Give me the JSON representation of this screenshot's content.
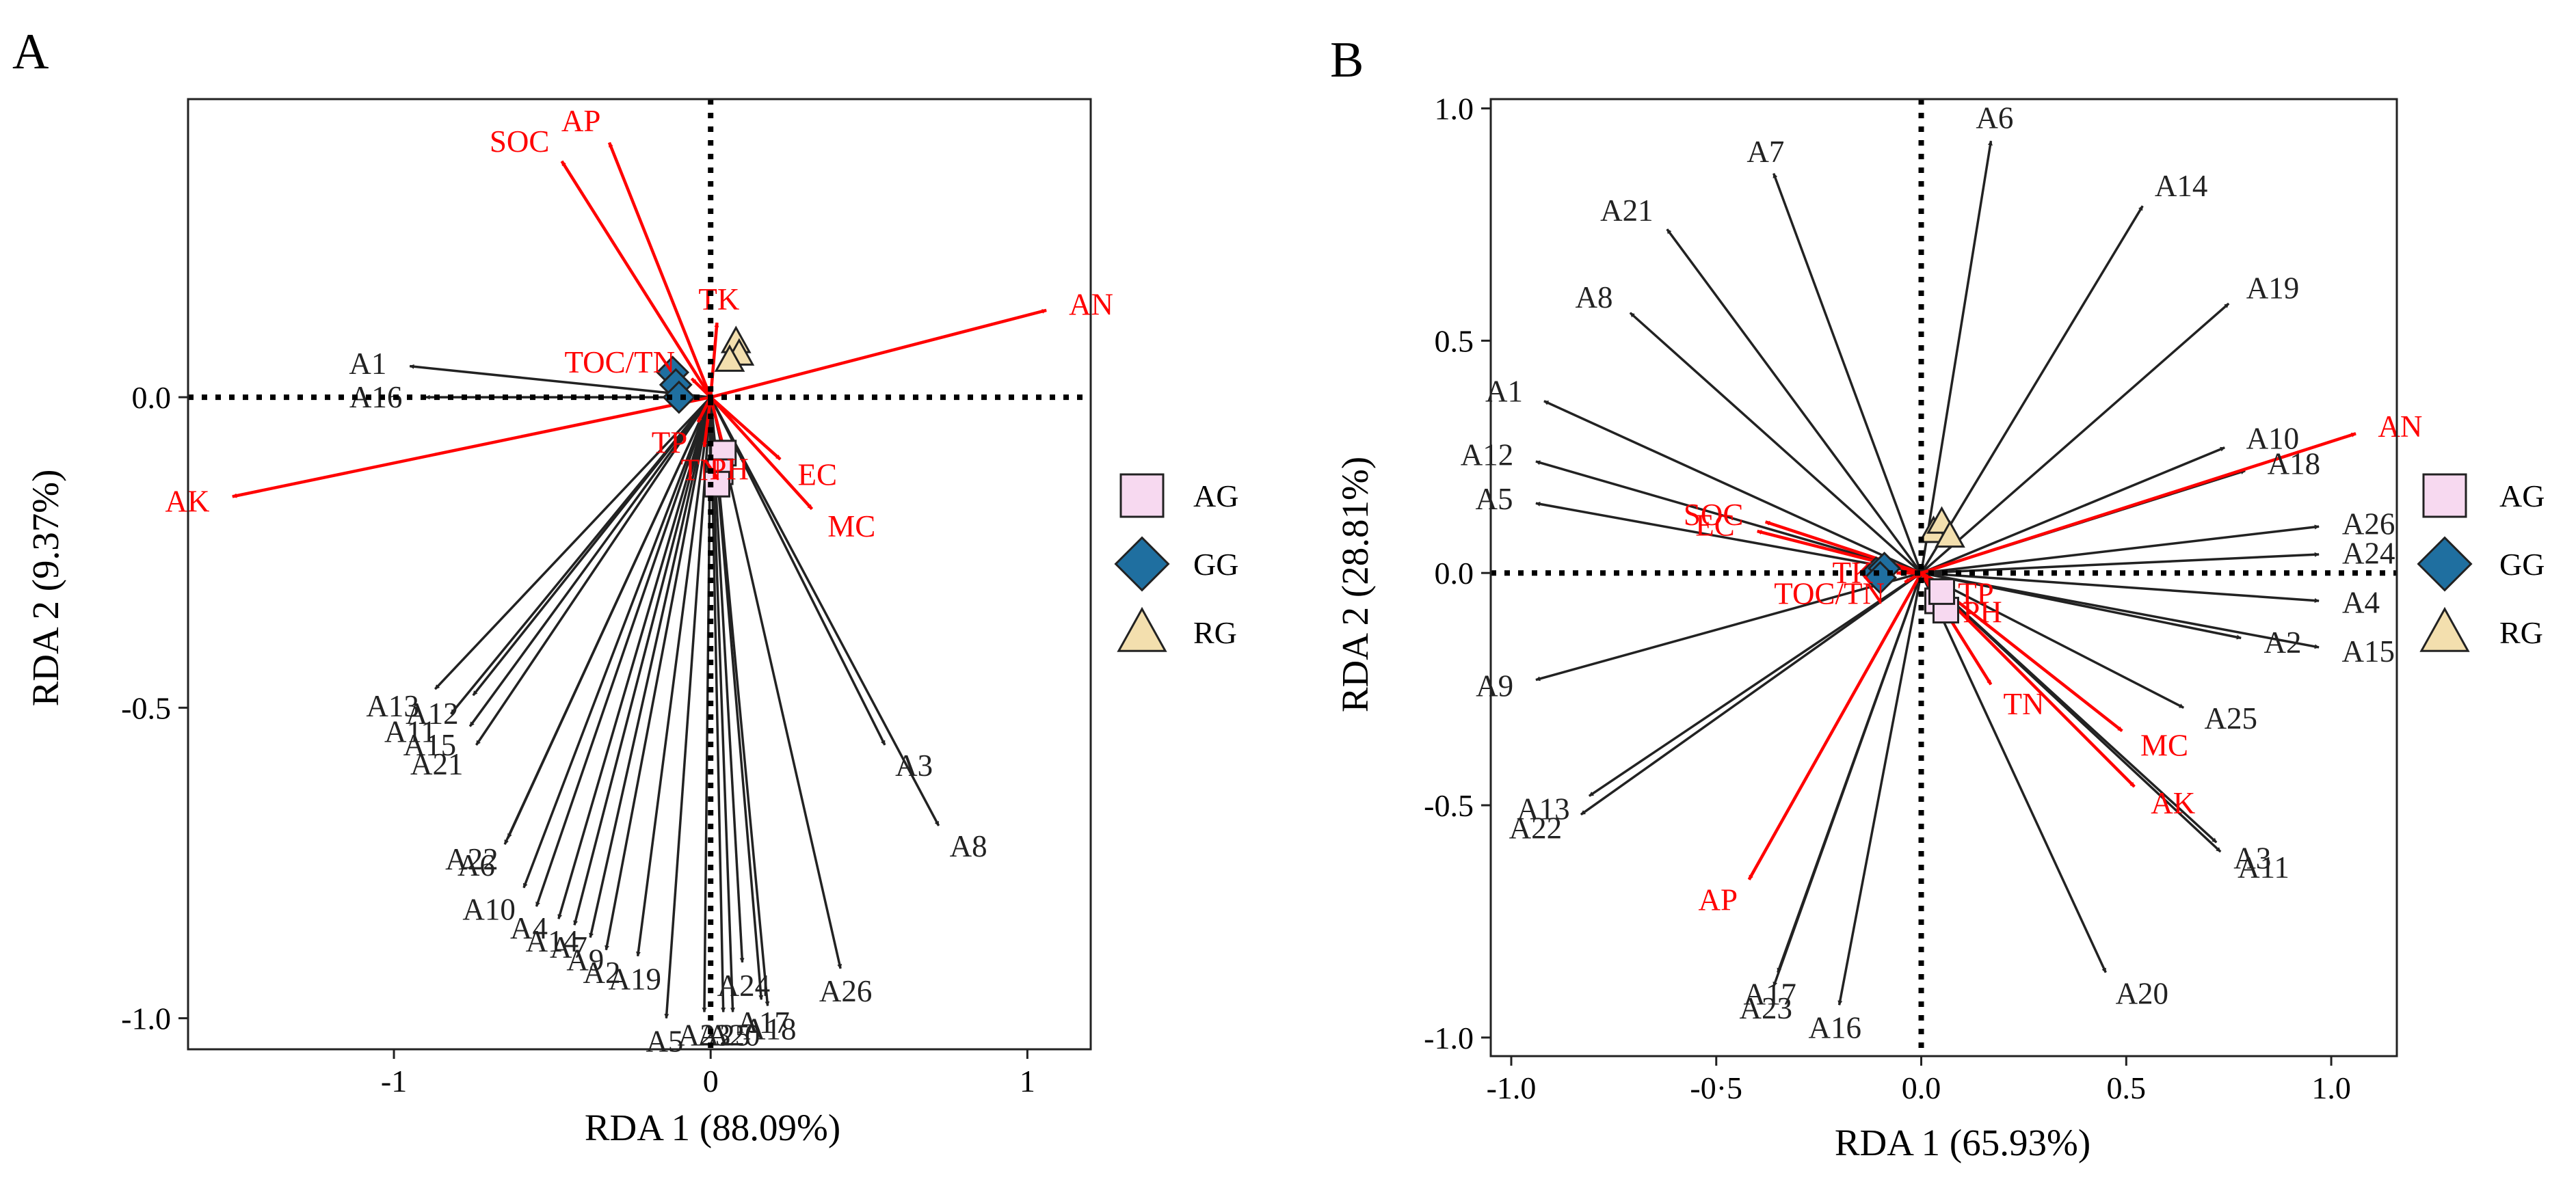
{
  "chart_data": [
    {
      "panel": "A",
      "type": "scatter",
      "subtype": "RDA biplot",
      "xlabel": "RDA 1 (88.09%)",
      "ylabel": "RDA 2 (9.37%)",
      "xlim": [
        -1.65,
        1.2
      ],
      "ylim": [
        -1.05,
        0.48
      ],
      "xticks": [
        -1,
        0,
        1
      ],
      "xtick_labels": [
        "-1",
        "0",
        "1"
      ],
      "yticks": [
        0.0,
        -0.5,
        -1.0
      ],
      "ytick_labels": [
        "0.0",
        "-0.5",
        "-1.0"
      ],
      "env_color": "#ff0000",
      "species_color": "#222222",
      "env_vectors": [
        {
          "name": "AP",
          "x": -0.32,
          "y": 0.41
        },
        {
          "name": "SOC",
          "x": -0.47,
          "y": 0.38
        },
        {
          "name": "TK",
          "x": 0.02,
          "y": 0.12
        },
        {
          "name": "AN",
          "x": 1.06,
          "y": 0.14
        },
        {
          "name": "TOC/TN",
          "x": -0.06,
          "y": 0.03
        },
        {
          "name": "EC",
          "x": 0.22,
          "y": -0.1
        },
        {
          "name": "TP",
          "x": -0.04,
          "y": -0.04
        },
        {
          "name": "TN",
          "x": -0.02,
          "y": -0.08
        },
        {
          "name": "PH",
          "x": 0.04,
          "y": -0.08
        },
        {
          "name": "MC",
          "x": 0.32,
          "y": -0.18
        },
        {
          "name": "AK",
          "x": -1.51,
          "y": -0.16
        }
      ],
      "species_vectors": [
        {
          "name": "A1",
          "x": -0.95,
          "y": 0.05
        },
        {
          "name": "A16",
          "x": -0.9,
          "y": 0.0
        },
        {
          "name": "A3",
          "x": 0.55,
          "y": -0.56
        },
        {
          "name": "A8",
          "x": 0.72,
          "y": -0.69
        },
        {
          "name": "A13",
          "x": -0.87,
          "y": -0.47
        },
        {
          "name": "A12",
          "x": -0.75,
          "y": -0.48
        },
        {
          "name": "A11",
          "x": -0.82,
          "y": -0.51
        },
        {
          "name": "A15",
          "x": -0.76,
          "y": -0.53
        },
        {
          "name": "A21",
          "x": -0.74,
          "y": -0.56
        },
        {
          "name": "A22",
          "x": -0.64,
          "y": -0.71
        },
        {
          "name": "A6",
          "x": -0.65,
          "y": -0.72
        },
        {
          "name": "A10",
          "x": -0.59,
          "y": -0.79
        },
        {
          "name": "A4",
          "x": -0.55,
          "y": -0.82
        },
        {
          "name": "A14",
          "x": -0.48,
          "y": -0.84
        },
        {
          "name": "A7",
          "x": -0.43,
          "y": -0.85
        },
        {
          "name": "A9",
          "x": -0.38,
          "y": -0.87
        },
        {
          "name": "A2",
          "x": -0.33,
          "y": -0.89
        },
        {
          "name": "A19",
          "x": -0.23,
          "y": -0.9
        },
        {
          "name": "A5",
          "x": -0.14,
          "y": -1.0
        },
        {
          "name": "A23",
          "x": -0.02,
          "y": -0.99
        },
        {
          "name": "A25",
          "x": 0.04,
          "y": -0.99
        },
        {
          "name": "A24",
          "x": 0.1,
          "y": -0.91
        },
        {
          "name": "A20",
          "x": 0.07,
          "y": -0.99
        },
        {
          "name": "A17",
          "x": 0.16,
          "y": -0.97
        },
        {
          "name": "A18",
          "x": 0.18,
          "y": -0.98
        },
        {
          "name": "A26",
          "x": 0.41,
          "y": -0.92
        }
      ],
      "samples": [
        {
          "group": "GG",
          "x": -0.12,
          "y": 0.04
        },
        {
          "group": "GG",
          "x": -0.11,
          "y": 0.02
        },
        {
          "group": "GG",
          "x": -0.1,
          "y": 0.0
        },
        {
          "group": "RG",
          "x": 0.08,
          "y": 0.09
        },
        {
          "group": "RG",
          "x": 0.09,
          "y": 0.07
        },
        {
          "group": "RG",
          "x": 0.06,
          "y": 0.06
        },
        {
          "group": "AG",
          "x": 0.04,
          "y": -0.09
        },
        {
          "group": "AG",
          "x": 0.03,
          "y": -0.12
        },
        {
          "group": "AG",
          "x": 0.02,
          "y": -0.14
        }
      ],
      "legend": [
        {
          "group": "AG",
          "label": "AG",
          "marker": "square",
          "color": "#f7d9f0"
        },
        {
          "group": "GG",
          "label": "GG",
          "marker": "diamond",
          "color": "#1f6fa0"
        },
        {
          "group": "RG",
          "label": "RG",
          "marker": "triangle",
          "color": "#f3dfae"
        }
      ]
    },
    {
      "panel": "B",
      "type": "scatter",
      "subtype": "RDA biplot",
      "xlabel": "RDA 1 (65.93%)",
      "ylabel": "RDA 2 (28.81%)",
      "xlim": [
        -1.05,
        1.16
      ],
      "ylim": [
        -1.04,
        1.02
      ],
      "xticks": [
        -1.0,
        -0.5,
        0.0,
        0.5,
        1.0
      ],
      "xtick_labels": [
        "-1.0",
        "-0·5",
        "0.0",
        "0.5",
        "1.0"
      ],
      "yticks": [
        1.0,
        0.5,
        0.0,
        -0.5,
        -1.0
      ],
      "ytick_labels": [
        "1.0",
        "0.5",
        "0.0",
        "-0.5",
        "-1.0"
      ],
      "env_color": "#ff0000",
      "species_color": "#222222",
      "env_vectors": [
        {
          "name": "AN",
          "x": 1.06,
          "y": 0.3
        },
        {
          "name": "SOC",
          "x": -0.38,
          "y": 0.11
        },
        {
          "name": "EC",
          "x": -0.4,
          "y": 0.09
        },
        {
          "name": "TK",
          "x": -0.06,
          "y": 0.0
        },
        {
          "name": "TP",
          "x": 0.04,
          "y": -0.02
        },
        {
          "name": "TOC/TN",
          "x": -0.04,
          "y": -0.02
        },
        {
          "name": "PH",
          "x": 0.06,
          "y": -0.05
        },
        {
          "name": "TN",
          "x": 0.17,
          "y": -0.24
        },
        {
          "name": "MC",
          "x": 0.49,
          "y": -0.34
        },
        {
          "name": "AK",
          "x": 0.52,
          "y": -0.46
        },
        {
          "name": "AP",
          "x": -0.42,
          "y": -0.66
        }
      ],
      "species_vectors": [
        {
          "name": "A6",
          "x": 0.17,
          "y": 0.93
        },
        {
          "name": "A7",
          "x": -0.36,
          "y": 0.86
        },
        {
          "name": "A14",
          "x": 0.54,
          "y": 0.79
        },
        {
          "name": "A21",
          "x": -0.62,
          "y": 0.74
        },
        {
          "name": "A19",
          "x": 0.75,
          "y": 0.58
        },
        {
          "name": "A8",
          "x": -0.71,
          "y": 0.56
        },
        {
          "name": "A1",
          "x": -0.92,
          "y": 0.37
        },
        {
          "name": "A10",
          "x": 0.74,
          "y": 0.27
        },
        {
          "name": "A12",
          "x": -0.94,
          "y": 0.24
        },
        {
          "name": "A18",
          "x": 0.79,
          "y": 0.22
        },
        {
          "name": "A26",
          "x": 0.97,
          "y": 0.1
        },
        {
          "name": "A5",
          "x": -0.94,
          "y": 0.15
        },
        {
          "name": "A24",
          "x": 0.97,
          "y": 0.04
        },
        {
          "name": "A4",
          "x": 0.97,
          "y": -0.06
        },
        {
          "name": "A2",
          "x": 0.78,
          "y": -0.14
        },
        {
          "name": "A15",
          "x": 0.97,
          "y": -0.16
        },
        {
          "name": "A9",
          "x": -0.94,
          "y": -0.23
        },
        {
          "name": "A25",
          "x": 0.64,
          "y": -0.29
        },
        {
          "name": "A13",
          "x": -0.81,
          "y": -0.48
        },
        {
          "name": "A22",
          "x": -0.83,
          "y": -0.52
        },
        {
          "name": "A3",
          "x": 0.72,
          "y": -0.58
        },
        {
          "name": "A11",
          "x": 0.73,
          "y": -0.6
        },
        {
          "name": "A17",
          "x": -0.35,
          "y": -0.86
        },
        {
          "name": "A20",
          "x": 0.45,
          "y": -0.86
        },
        {
          "name": "A23",
          "x": -0.36,
          "y": -0.89
        },
        {
          "name": "A16",
          "x": -0.2,
          "y": -0.93
        }
      ],
      "samples": [
        {
          "group": "GG",
          "x": -0.11,
          "y": 0.0
        },
        {
          "group": "GG",
          "x": -0.09,
          "y": 0.01
        },
        {
          "group": "GG",
          "x": -0.1,
          "y": -0.01
        },
        {
          "group": "RG",
          "x": 0.03,
          "y": 0.09
        },
        {
          "group": "RG",
          "x": 0.05,
          "y": 0.11
        },
        {
          "group": "RG",
          "x": 0.07,
          "y": 0.08
        },
        {
          "group": "AG",
          "x": 0.04,
          "y": -0.06
        },
        {
          "group": "AG",
          "x": 0.06,
          "y": -0.08
        },
        {
          "group": "AG",
          "x": 0.05,
          "y": -0.04
        }
      ],
      "legend": [
        {
          "group": "AG",
          "label": "AG",
          "marker": "square",
          "color": "#f7d9f0"
        },
        {
          "group": "GG",
          "label": "GG",
          "marker": "diamond",
          "color": "#1f6fa0"
        },
        {
          "group": "RG",
          "label": "RG",
          "marker": "triangle",
          "color": "#f3dfae"
        }
      ]
    }
  ]
}
